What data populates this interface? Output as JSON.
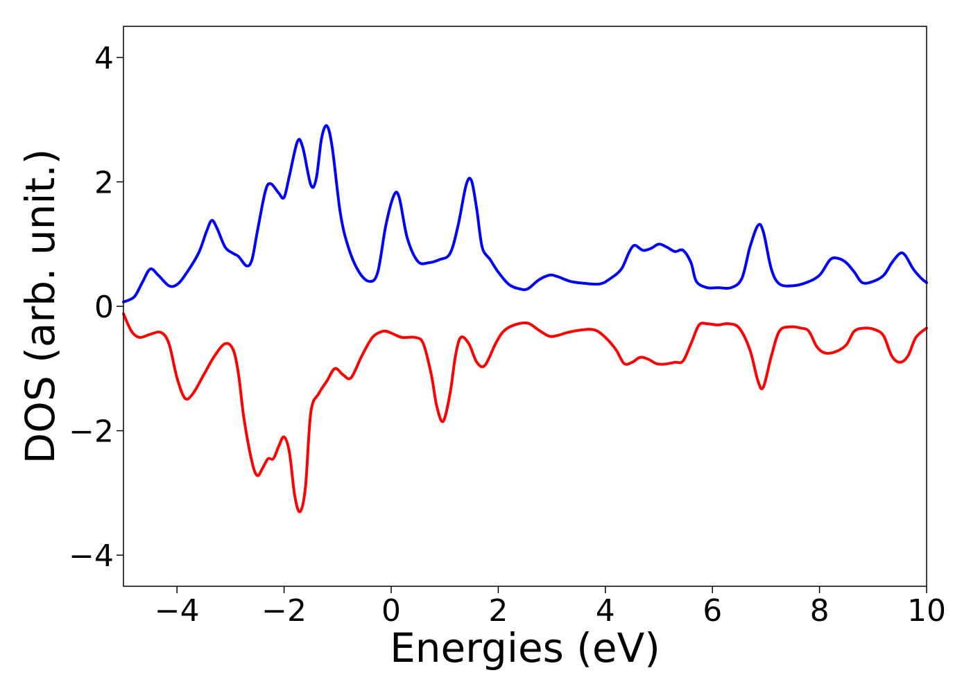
{
  "chart_data": {
    "type": "line",
    "title": "",
    "xlabel": "Energies (eV)",
    "ylabel": "DOS (arb. unit.)",
    "xlim": [
      -5,
      10
    ],
    "ylim": [
      -4.5,
      4.5
    ],
    "grid": false,
    "legend": "none",
    "xticks": [
      -4,
      -2,
      0,
      2,
      4,
      6,
      8,
      10
    ],
    "xtick_labels": [
      "−4",
      "−2",
      "0",
      "2",
      "4",
      "6",
      "8",
      "10"
    ],
    "yticks": [
      -4,
      -2,
      0,
      2,
      4
    ],
    "ytick_labels": [
      "−4",
      "−2",
      "0",
      "2",
      "4"
    ],
    "series": [
      {
        "color": "#0000ff",
        "points": [
          [
            -5.0,
            0.07
          ],
          [
            -4.8,
            0.15
          ],
          [
            -4.65,
            0.38
          ],
          [
            -4.5,
            0.6
          ],
          [
            -4.35,
            0.5
          ],
          [
            -4.15,
            0.33
          ],
          [
            -4.0,
            0.35
          ],
          [
            -3.85,
            0.5
          ],
          [
            -3.6,
            0.85
          ],
          [
            -3.45,
            1.2
          ],
          [
            -3.35,
            1.38
          ],
          [
            -3.25,
            1.25
          ],
          [
            -3.1,
            0.95
          ],
          [
            -2.95,
            0.85
          ],
          [
            -2.85,
            0.8
          ],
          [
            -2.7,
            0.65
          ],
          [
            -2.6,
            0.75
          ],
          [
            -2.5,
            1.2
          ],
          [
            -2.35,
            1.85
          ],
          [
            -2.25,
            1.97
          ],
          [
            -2.1,
            1.82
          ],
          [
            -2.0,
            1.75
          ],
          [
            -1.9,
            2.1
          ],
          [
            -1.75,
            2.65
          ],
          [
            -1.65,
            2.55
          ],
          [
            -1.5,
            1.95
          ],
          [
            -1.4,
            2.05
          ],
          [
            -1.3,
            2.7
          ],
          [
            -1.2,
            2.9
          ],
          [
            -1.1,
            2.55
          ],
          [
            -0.95,
            1.5
          ],
          [
            -0.8,
            0.95
          ],
          [
            -0.6,
            0.55
          ],
          [
            -0.4,
            0.4
          ],
          [
            -0.25,
            0.55
          ],
          [
            -0.1,
            1.3
          ],
          [
            0.05,
            1.78
          ],
          [
            0.15,
            1.75
          ],
          [
            0.3,
            1.1
          ],
          [
            0.5,
            0.72
          ],
          [
            0.7,
            0.7
          ],
          [
            0.9,
            0.75
          ],
          [
            1.1,
            0.85
          ],
          [
            1.25,
            1.3
          ],
          [
            1.4,
            1.95
          ],
          [
            1.5,
            2.02
          ],
          [
            1.6,
            1.55
          ],
          [
            1.7,
            0.95
          ],
          [
            1.85,
            0.75
          ],
          [
            2.0,
            0.55
          ],
          [
            2.2,
            0.35
          ],
          [
            2.4,
            0.28
          ],
          [
            2.55,
            0.28
          ],
          [
            2.75,
            0.42
          ],
          [
            2.95,
            0.5
          ],
          [
            3.1,
            0.48
          ],
          [
            3.35,
            0.4
          ],
          [
            3.6,
            0.37
          ],
          [
            3.9,
            0.36
          ],
          [
            4.1,
            0.45
          ],
          [
            4.3,
            0.6
          ],
          [
            4.45,
            0.88
          ],
          [
            4.55,
            0.98
          ],
          [
            4.7,
            0.9
          ],
          [
            4.85,
            0.93
          ],
          [
            5.0,
            1.0
          ],
          [
            5.15,
            0.95
          ],
          [
            5.3,
            0.88
          ],
          [
            5.45,
            0.9
          ],
          [
            5.6,
            0.7
          ],
          [
            5.7,
            0.4
          ],
          [
            5.9,
            0.3
          ],
          [
            6.1,
            0.3
          ],
          [
            6.35,
            0.3
          ],
          [
            6.55,
            0.45
          ],
          [
            6.7,
            0.95
          ],
          [
            6.85,
            1.3
          ],
          [
            6.95,
            1.2
          ],
          [
            7.1,
            0.6
          ],
          [
            7.25,
            0.36
          ],
          [
            7.5,
            0.33
          ],
          [
            7.75,
            0.38
          ],
          [
            8.0,
            0.5
          ],
          [
            8.2,
            0.75
          ],
          [
            8.35,
            0.77
          ],
          [
            8.5,
            0.7
          ],
          [
            8.65,
            0.55
          ],
          [
            8.8,
            0.38
          ],
          [
            9.0,
            0.4
          ],
          [
            9.2,
            0.5
          ],
          [
            9.35,
            0.7
          ],
          [
            9.5,
            0.85
          ],
          [
            9.6,
            0.82
          ],
          [
            9.75,
            0.6
          ],
          [
            9.9,
            0.45
          ],
          [
            10.0,
            0.38
          ]
        ]
      },
      {
        "color": "#ff0000",
        "points": [
          [
            -5.0,
            -0.12
          ],
          [
            -4.85,
            -0.4
          ],
          [
            -4.7,
            -0.5
          ],
          [
            -4.5,
            -0.45
          ],
          [
            -4.3,
            -0.42
          ],
          [
            -4.15,
            -0.6
          ],
          [
            -4.0,
            -1.15
          ],
          [
            -3.85,
            -1.48
          ],
          [
            -3.7,
            -1.4
          ],
          [
            -3.5,
            -1.1
          ],
          [
            -3.3,
            -0.8
          ],
          [
            -3.1,
            -0.6
          ],
          [
            -2.95,
            -0.7
          ],
          [
            -2.85,
            -1.1
          ],
          [
            -2.75,
            -1.8
          ],
          [
            -2.6,
            -2.5
          ],
          [
            -2.5,
            -2.72
          ],
          [
            -2.4,
            -2.6
          ],
          [
            -2.3,
            -2.45
          ],
          [
            -2.2,
            -2.45
          ],
          [
            -2.1,
            -2.25
          ],
          [
            -2.0,
            -2.1
          ],
          [
            -1.9,
            -2.35
          ],
          [
            -1.8,
            -3.05
          ],
          [
            -1.7,
            -3.3
          ],
          [
            -1.6,
            -2.9
          ],
          [
            -1.5,
            -1.7
          ],
          [
            -1.35,
            -1.4
          ],
          [
            -1.2,
            -1.2
          ],
          [
            -1.05,
            -1.0
          ],
          [
            -0.9,
            -1.1
          ],
          [
            -0.75,
            -1.15
          ],
          [
            -0.55,
            -0.8
          ],
          [
            -0.35,
            -0.5
          ],
          [
            -0.15,
            -0.4
          ],
          [
            0.0,
            -0.43
          ],
          [
            0.2,
            -0.5
          ],
          [
            0.45,
            -0.5
          ],
          [
            0.6,
            -0.6
          ],
          [
            0.75,
            -1.1
          ],
          [
            0.85,
            -1.6
          ],
          [
            0.97,
            -1.85
          ],
          [
            1.1,
            -1.4
          ],
          [
            1.2,
            -0.8
          ],
          [
            1.3,
            -0.5
          ],
          [
            1.45,
            -0.6
          ],
          [
            1.6,
            -0.9
          ],
          [
            1.75,
            -0.95
          ],
          [
            1.95,
            -0.6
          ],
          [
            2.1,
            -0.4
          ],
          [
            2.3,
            -0.3
          ],
          [
            2.55,
            -0.27
          ],
          [
            2.75,
            -0.38
          ],
          [
            2.95,
            -0.48
          ],
          [
            3.1,
            -0.47
          ],
          [
            3.3,
            -0.42
          ],
          [
            3.55,
            -0.38
          ],
          [
            3.8,
            -0.38
          ],
          [
            4.0,
            -0.5
          ],
          [
            4.2,
            -0.7
          ],
          [
            4.35,
            -0.92
          ],
          [
            4.5,
            -0.9
          ],
          [
            4.65,
            -0.82
          ],
          [
            4.8,
            -0.85
          ],
          [
            4.95,
            -0.92
          ],
          [
            5.1,
            -0.93
          ],
          [
            5.3,
            -0.9
          ],
          [
            5.45,
            -0.88
          ],
          [
            5.6,
            -0.6
          ],
          [
            5.75,
            -0.3
          ],
          [
            5.9,
            -0.28
          ],
          [
            6.1,
            -0.3
          ],
          [
            6.3,
            -0.28
          ],
          [
            6.5,
            -0.35
          ],
          [
            6.7,
            -0.7
          ],
          [
            6.85,
            -1.2
          ],
          [
            6.95,
            -1.3
          ],
          [
            7.1,
            -0.8
          ],
          [
            7.25,
            -0.4
          ],
          [
            7.45,
            -0.33
          ],
          [
            7.65,
            -0.35
          ],
          [
            7.8,
            -0.4
          ],
          [
            7.95,
            -0.65
          ],
          [
            8.1,
            -0.75
          ],
          [
            8.3,
            -0.73
          ],
          [
            8.5,
            -0.62
          ],
          [
            8.65,
            -0.4
          ],
          [
            8.85,
            -0.35
          ],
          [
            9.05,
            -0.38
          ],
          [
            9.2,
            -0.48
          ],
          [
            9.35,
            -0.8
          ],
          [
            9.5,
            -0.9
          ],
          [
            9.65,
            -0.8
          ],
          [
            9.8,
            -0.5
          ],
          [
            10.0,
            -0.35
          ]
        ]
      }
    ]
  }
}
